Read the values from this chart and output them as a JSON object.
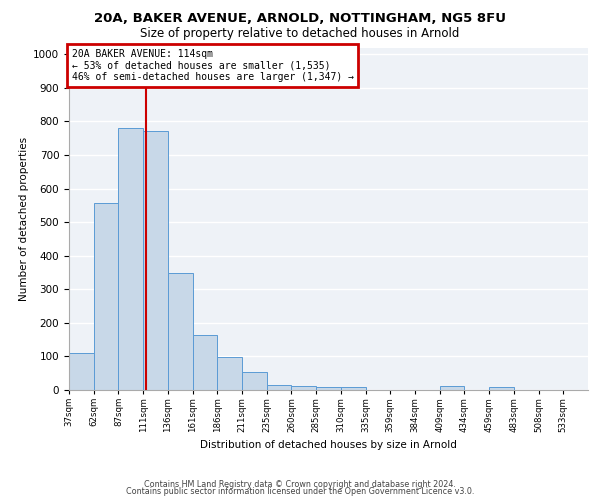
{
  "title1": "20A, BAKER AVENUE, ARNOLD, NOTTINGHAM, NG5 8FU",
  "title2": "Size of property relative to detached houses in Arnold",
  "xlabel": "Distribution of detached houses by size in Arnold",
  "ylabel": "Number of detached properties",
  "categories": [
    "37sqm",
    "62sqm",
    "87sqm",
    "111sqm",
    "136sqm",
    "161sqm",
    "186sqm",
    "211sqm",
    "235sqm",
    "260sqm",
    "285sqm",
    "310sqm",
    "335sqm",
    "359sqm",
    "384sqm",
    "409sqm",
    "434sqm",
    "459sqm",
    "483sqm",
    "508sqm",
    "533sqm"
  ],
  "values": [
    111,
    557,
    779,
    770,
    347,
    163,
    97,
    53,
    15,
    11,
    10,
    8,
    0,
    0,
    0,
    11,
    0,
    9,
    0,
    0,
    0
  ],
  "bar_color": "#c8d8e8",
  "bar_edge_color": "#5b9bd5",
  "vline_color": "#cc0000",
  "annotation_text": "20A BAKER AVENUE: 114sqm\n← 53% of detached houses are smaller (1,535)\n46% of semi-detached houses are larger (1,347) →",
  "annotation_box_color": "#cc0000",
  "annotation_text_color": "#000000",
  "ylim": [
    0,
    1020
  ],
  "yticks": [
    0,
    100,
    200,
    300,
    400,
    500,
    600,
    700,
    800,
    900,
    1000
  ],
  "bg_color": "#eef2f7",
  "grid_color": "#ffffff",
  "footer_line1": "Contains HM Land Registry data © Crown copyright and database right 2024.",
  "footer_line2": "Contains public sector information licensed under the Open Government Licence v3.0."
}
